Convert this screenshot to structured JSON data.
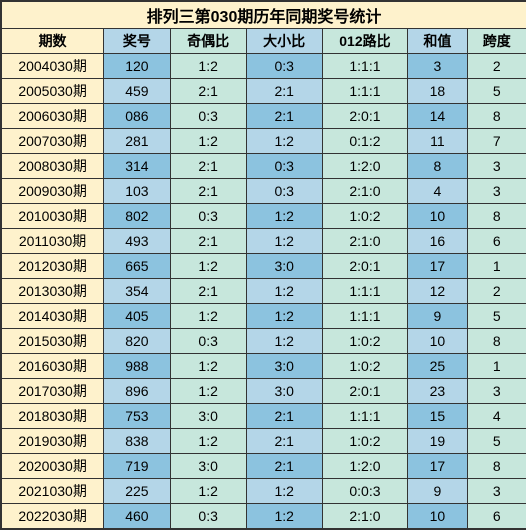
{
  "title": "排列三第030期历年同期奖号统计",
  "colors": {
    "yellow": "#fef2cc",
    "blue_light": "#b4d6e8",
    "blue_dark": "#8cc3df",
    "green_light": "#c7e7dc",
    "border": "#333333",
    "text": "#000000"
  },
  "columns": [
    "期数",
    "奖号",
    "奇偶比",
    "大小比",
    "012路比",
    "和值",
    "跨度"
  ],
  "rows": [
    {
      "period": "2004030期",
      "num": "120",
      "oddeven": "1:2",
      "bigsmall": "0:3",
      "road": "1:1:1",
      "sum": "3",
      "span": "2"
    },
    {
      "period": "2005030期",
      "num": "459",
      "oddeven": "2:1",
      "bigsmall": "2:1",
      "road": "1:1:1",
      "sum": "18",
      "span": "5"
    },
    {
      "period": "2006030期",
      "num": "086",
      "oddeven": "0:3",
      "bigsmall": "2:1",
      "road": "2:0:1",
      "sum": "14",
      "span": "8"
    },
    {
      "period": "2007030期",
      "num": "281",
      "oddeven": "1:2",
      "bigsmall": "1:2",
      "road": "0:1:2",
      "sum": "11",
      "span": "7"
    },
    {
      "period": "2008030期",
      "num": "314",
      "oddeven": "2:1",
      "bigsmall": "0:3",
      "road": "1:2:0",
      "sum": "8",
      "span": "3"
    },
    {
      "period": "2009030期",
      "num": "103",
      "oddeven": "2:1",
      "bigsmall": "0:3",
      "road": "2:1:0",
      "sum": "4",
      "span": "3"
    },
    {
      "period": "2010030期",
      "num": "802",
      "oddeven": "0:3",
      "bigsmall": "1:2",
      "road": "1:0:2",
      "sum": "10",
      "span": "8"
    },
    {
      "period": "2011030期",
      "num": "493",
      "oddeven": "2:1",
      "bigsmall": "1:2",
      "road": "2:1:0",
      "sum": "16",
      "span": "6"
    },
    {
      "period": "2012030期",
      "num": "665",
      "oddeven": "1:2",
      "bigsmall": "3:0",
      "road": "2:0:1",
      "sum": "17",
      "span": "1"
    },
    {
      "period": "2013030期",
      "num": "354",
      "oddeven": "2:1",
      "bigsmall": "1:2",
      "road": "1:1:1",
      "sum": "12",
      "span": "2"
    },
    {
      "period": "2014030期",
      "num": "405",
      "oddeven": "1:2",
      "bigsmall": "1:2",
      "road": "1:1:1",
      "sum": "9",
      "span": "5"
    },
    {
      "period": "2015030期",
      "num": "820",
      "oddeven": "0:3",
      "bigsmall": "1:2",
      "road": "1:0:2",
      "sum": "10",
      "span": "8"
    },
    {
      "period": "2016030期",
      "num": "988",
      "oddeven": "1:2",
      "bigsmall": "3:0",
      "road": "1:0:2",
      "sum": "25",
      "span": "1"
    },
    {
      "period": "2017030期",
      "num": "896",
      "oddeven": "1:2",
      "bigsmall": "3:0",
      "road": "2:0:1",
      "sum": "23",
      "span": "3"
    },
    {
      "period": "2018030期",
      "num": "753",
      "oddeven": "3:0",
      "bigsmall": "2:1",
      "road": "1:1:1",
      "sum": "15",
      "span": "4"
    },
    {
      "period": "2019030期",
      "num": "838",
      "oddeven": "1:2",
      "bigsmall": "2:1",
      "road": "1:0:2",
      "sum": "19",
      "span": "5"
    },
    {
      "period": "2020030期",
      "num": "719",
      "oddeven": "3:0",
      "bigsmall": "2:1",
      "road": "1:2:0",
      "sum": "17",
      "span": "8"
    },
    {
      "period": "2021030期",
      "num": "225",
      "oddeven": "1:2",
      "bigsmall": "1:2",
      "road": "0:0:3",
      "sum": "9",
      "span": "3"
    },
    {
      "period": "2022030期",
      "num": "460",
      "oddeven": "0:3",
      "bigsmall": "1:2",
      "road": "2:1:0",
      "sum": "10",
      "span": "6"
    }
  ]
}
